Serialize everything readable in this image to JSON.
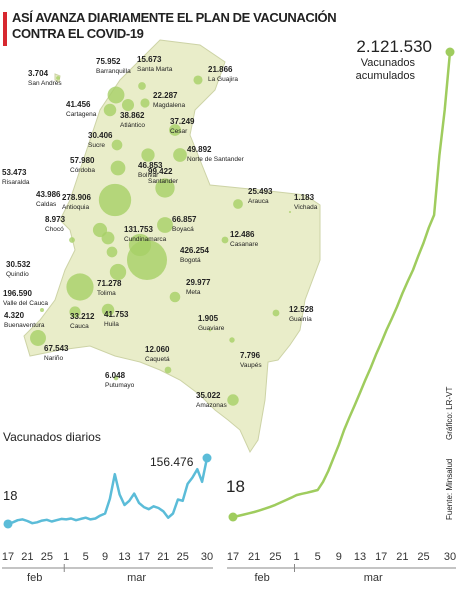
{
  "title": "ASÍ AVANZA DIARIAMENTE EL PLAN DE VACUNACIÓN CONTRA EL COVID-19",
  "source": "Fuente: Minsalud",
  "credit": "Gráfico: LR-VT",
  "map": {
    "color": "#a6cf66",
    "regions": [
      {
        "name": "San Andrés",
        "value": 3704,
        "value_label": "3.704"
      },
      {
        "name": "Barranquilla",
        "value": 75952,
        "value_label": "75.952"
      },
      {
        "name": "Santa Marta",
        "value": 15673,
        "value_label": "15.673"
      },
      {
        "name": "La Guajira",
        "value": 21866,
        "value_label": "21.866"
      },
      {
        "name": "Cartagena",
        "value": 41456,
        "value_label": "41.456"
      },
      {
        "name": "Magdalena",
        "value": 22287,
        "value_label": "22.287"
      },
      {
        "name": "Atlántico",
        "value": 38862,
        "value_label": "38.862"
      },
      {
        "name": "Cesar",
        "value": 37249,
        "value_label": "37.249"
      },
      {
        "name": "Sucre",
        "value": 30406,
        "value_label": "30.406"
      },
      {
        "name": "Bolívar",
        "value": 46853,
        "value_label": "46.853"
      },
      {
        "name": "Norte de Santander",
        "value": 49892,
        "value_label": "49.892"
      },
      {
        "name": "Córdoba",
        "value": 57980,
        "value_label": "57.980"
      },
      {
        "name": "Antioquia",
        "value": 278906,
        "value_label": "278.906"
      },
      {
        "name": "Santander",
        "value": 99422,
        "value_label": "99.422"
      },
      {
        "name": "Arauca",
        "value": 25493,
        "value_label": "25.493"
      },
      {
        "name": "Risaralda",
        "value": 53473,
        "value_label": "53.473"
      },
      {
        "name": "Caldas",
        "value": 43986,
        "value_label": "43.986"
      },
      {
        "name": "Boyacá",
        "value": 66857,
        "value_label": "66.857"
      },
      {
        "name": "Vichada",
        "value": 1183,
        "value_label": "1.183"
      },
      {
        "name": "Cundinamarca",
        "value": 131753,
        "value_label": "131.753"
      },
      {
        "name": "Casanare",
        "value": 12486,
        "value_label": "12.486"
      },
      {
        "name": "Chocó",
        "value": 8973,
        "value_label": "8.973"
      },
      {
        "name": "Bogotá",
        "value": 426254,
        "value_label": "426.254"
      },
      {
        "name": "Quindío",
        "value": 30532,
        "value_label": "30.532"
      },
      {
        "name": "Tolima",
        "value": 71278,
        "value_label": "71.278"
      },
      {
        "name": "Meta",
        "value": 29977,
        "value_label": "29.977"
      },
      {
        "name": "Valle del Cauca",
        "value": 196590,
        "value_label": "196.590"
      },
      {
        "name": "Guainía",
        "value": 12528,
        "value_label": "12.528"
      },
      {
        "name": "Cauca",
        "value": 33212,
        "value_label": "33.212"
      },
      {
        "name": "Huila",
        "value": 41753,
        "value_label": "41.753"
      },
      {
        "name": "Buenaventura",
        "value": 4320,
        "value_label": "4.320"
      },
      {
        "name": "Guaviare",
        "value": 1905,
        "value_label": "1.905"
      },
      {
        "name": "Nariño",
        "value": 67543,
        "value_label": "67.543"
      },
      {
        "name": "Caquetá",
        "value": 12060,
        "value_label": "12.060"
      },
      {
        "name": "Vaupés",
        "value": 7796,
        "value_label": "7.796"
      },
      {
        "name": "Putumayo",
        "value": 6048,
        "value_label": "6.048"
      },
      {
        "name": "Amazonas",
        "value": 35022,
        "value_label": "35.022"
      }
    ]
  },
  "chart_data": [
    {
      "type": "line",
      "title": "Vacunados diarios",
      "color": "#5bbcd8",
      "x": [
        "17 feb",
        "18 feb",
        "19 feb",
        "20 feb",
        "21 feb",
        "22 feb",
        "23 feb",
        "24 feb",
        "25 feb",
        "26 feb",
        "27 feb",
        "28 feb",
        "1 mar",
        "2 mar",
        "3 mar",
        "4 mar",
        "5 mar",
        "6 mar",
        "7 mar",
        "8 mar",
        "9 mar",
        "10 mar",
        "11 mar",
        "12 mar",
        "13 mar",
        "14 mar",
        "15 mar",
        "16 mar",
        "17 mar",
        "18 mar",
        "19 mar",
        "20 mar",
        "21 mar",
        "22 mar",
        "23 mar",
        "24 mar",
        "25 mar",
        "26 mar",
        "27 mar",
        "28 mar",
        "29 mar",
        "30 mar"
      ],
      "values": [
        18,
        4000,
        9000,
        11000,
        7000,
        2000,
        4000,
        8000,
        10000,
        6000,
        9000,
        12000,
        11000,
        13000,
        9000,
        12000,
        15000,
        11000,
        13000,
        20000,
        25000,
        60000,
        118000,
        70000,
        45000,
        55000,
        72000,
        50000,
        40000,
        35000,
        42000,
        38000,
        30000,
        15000,
        25000,
        58000,
        55000,
        95000,
        110000,
        130000,
        100000,
        156476
      ],
      "value_labels": [
        "18",
        null,
        null,
        null,
        null,
        null,
        null,
        null,
        null,
        null,
        null,
        null,
        null,
        null,
        null,
        null,
        null,
        null,
        null,
        null,
        null,
        null,
        null,
        null,
        null,
        null,
        null,
        null,
        null,
        null,
        null,
        null,
        null,
        null,
        null,
        null,
        null,
        null,
        null,
        null,
        null,
        "156.476"
      ],
      "xticks": [
        {
          "value": "17 feb",
          "label": "17"
        },
        {
          "value": "21 feb",
          "label": "21"
        },
        {
          "value": "25 feb",
          "label": "25"
        },
        {
          "value": "1 mar",
          "label": "1"
        },
        {
          "value": "5 mar",
          "label": "5"
        },
        {
          "value": "9 mar",
          "label": "9"
        },
        {
          "value": "13 mar",
          "label": "13"
        },
        {
          "value": "17 mar",
          "label": "17"
        },
        {
          "value": "21 mar",
          "label": "21"
        },
        {
          "value": "25 mar",
          "label": "25"
        },
        {
          "value": "30 mar",
          "label": "30"
        }
      ],
      "months": [
        "feb",
        "mar"
      ]
    },
    {
      "type": "line",
      "title": "Vacunados acumulados",
      "color": "#9fcc5e",
      "x": [
        "17 feb",
        "18 feb",
        "19 feb",
        "20 feb",
        "21 feb",
        "22 feb",
        "23 feb",
        "24 feb",
        "25 feb",
        "26 feb",
        "27 feb",
        "28 feb",
        "1 mar",
        "2 mar",
        "3 mar",
        "4 mar",
        "5 mar",
        "6 mar",
        "7 mar",
        "8 mar",
        "9 mar",
        "10 mar",
        "11 mar",
        "12 mar",
        "13 mar",
        "14 mar",
        "15 mar",
        "16 mar",
        "17 mar",
        "18 mar",
        "19 mar",
        "20 mar",
        "21 mar",
        "22 mar",
        "23 mar",
        "24 mar",
        "25 mar",
        "26 mar",
        "27 mar",
        "28 mar",
        "29 mar",
        "30 mar"
      ],
      "values": [
        18,
        5000,
        11000,
        17000,
        23000,
        30000,
        38000,
        46000,
        55000,
        66000,
        77000,
        88000,
        100000,
        106000,
        111000,
        117000,
        123000,
        160000,
        210000,
        270000,
        330000,
        397000,
        455000,
        510000,
        567000,
        625000,
        680000,
        740000,
        795000,
        853000,
        905000,
        960000,
        1020000,
        1075000,
        1127000,
        1190000,
        1250000,
        1320000,
        1378000,
        1650000,
        1857000,
        2121530
      ],
      "value_labels": [
        "18",
        null,
        null,
        null,
        null,
        null,
        null,
        null,
        null,
        null,
        null,
        null,
        null,
        null,
        null,
        null,
        null,
        null,
        null,
        null,
        null,
        null,
        null,
        null,
        null,
        null,
        null,
        null,
        null,
        null,
        null,
        null,
        null,
        null,
        null,
        null,
        null,
        null,
        null,
        null,
        null,
        "2.121.530"
      ],
      "xticks": [
        {
          "value": "17 feb",
          "label": "17"
        },
        {
          "value": "21 feb",
          "label": "21"
        },
        {
          "value": "25 feb",
          "label": "25"
        },
        {
          "value": "1 mar",
          "label": "1"
        },
        {
          "value": "5 mar",
          "label": "5"
        },
        {
          "value": "9 mar",
          "label": "9"
        },
        {
          "value": "13 mar",
          "label": "13"
        },
        {
          "value": "17 mar",
          "label": "17"
        },
        {
          "value": "21 mar",
          "label": "21"
        },
        {
          "value": "25 mar",
          "label": "25"
        },
        {
          "value": "30 mar",
          "label": "30"
        }
      ],
      "months": [
        "feb",
        "mar"
      ]
    }
  ]
}
